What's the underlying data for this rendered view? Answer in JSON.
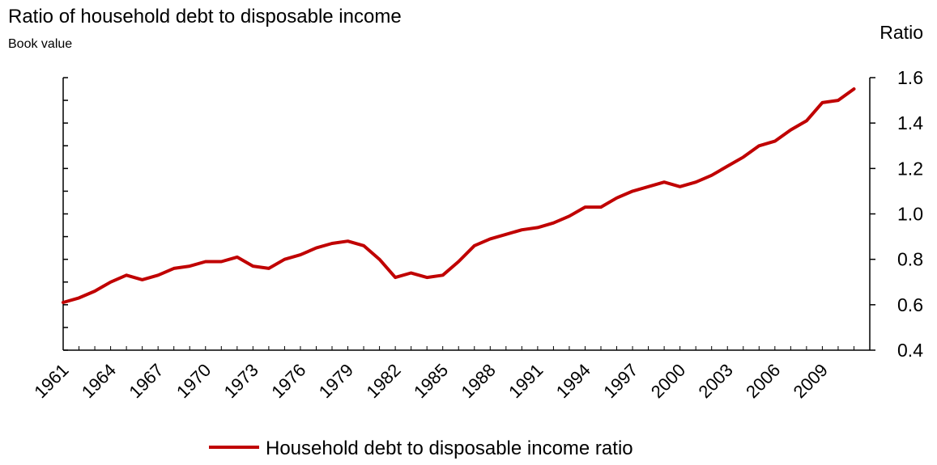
{
  "chart_data": {
    "type": "line",
    "title": "Ratio of household debt to disposable income",
    "subtitle": "Book value",
    "ylabel": "Ratio",
    "xlabel": "",
    "ylim": [
      0.4,
      1.6
    ],
    "y_ticks": [
      "0.4",
      "0.6",
      "0.8",
      "1.0",
      "1.2",
      "1.4",
      "1.6"
    ],
    "y_tick_values": [
      0.4,
      0.6,
      0.8,
      1.0,
      1.2,
      1.4,
      1.6
    ],
    "x_ticks": [
      "1961",
      "1964",
      "1967",
      "1970",
      "1973",
      "1976",
      "1979",
      "1982",
      "1985",
      "1988",
      "1991",
      "1994",
      "1997",
      "2000",
      "2003",
      "2006",
      "2009"
    ],
    "xlim": [
      1961,
      2012
    ],
    "legend_position": "bottom",
    "grid": false,
    "series": [
      {
        "name": "Household debt to disposable income ratio",
        "color": "#c00000",
        "x": [
          1961,
          1962,
          1963,
          1964,
          1965,
          1966,
          1967,
          1968,
          1969,
          1970,
          1971,
          1972,
          1973,
          1974,
          1975,
          1976,
          1977,
          1978,
          1979,
          1980,
          1981,
          1982,
          1983,
          1984,
          1985,
          1986,
          1987,
          1988,
          1989,
          1990,
          1991,
          1992,
          1993,
          1994,
          1995,
          1996,
          1997,
          1998,
          1999,
          2000,
          2001,
          2002,
          2003,
          2004,
          2005,
          2006,
          2007,
          2008,
          2009,
          2010,
          2011
        ],
        "values": [
          0.61,
          0.63,
          0.66,
          0.7,
          0.73,
          0.71,
          0.73,
          0.76,
          0.77,
          0.79,
          0.79,
          0.81,
          0.77,
          0.76,
          0.8,
          0.82,
          0.85,
          0.87,
          0.88,
          0.86,
          0.8,
          0.72,
          0.74,
          0.72,
          0.73,
          0.79,
          0.86,
          0.89,
          0.91,
          0.93,
          0.94,
          0.96,
          0.99,
          1.03,
          1.03,
          1.07,
          1.1,
          1.12,
          1.14,
          1.12,
          1.14,
          1.17,
          1.21,
          1.25,
          1.3,
          1.32,
          1.37,
          1.41,
          1.49,
          1.5,
          1.55
        ]
      }
    ]
  }
}
